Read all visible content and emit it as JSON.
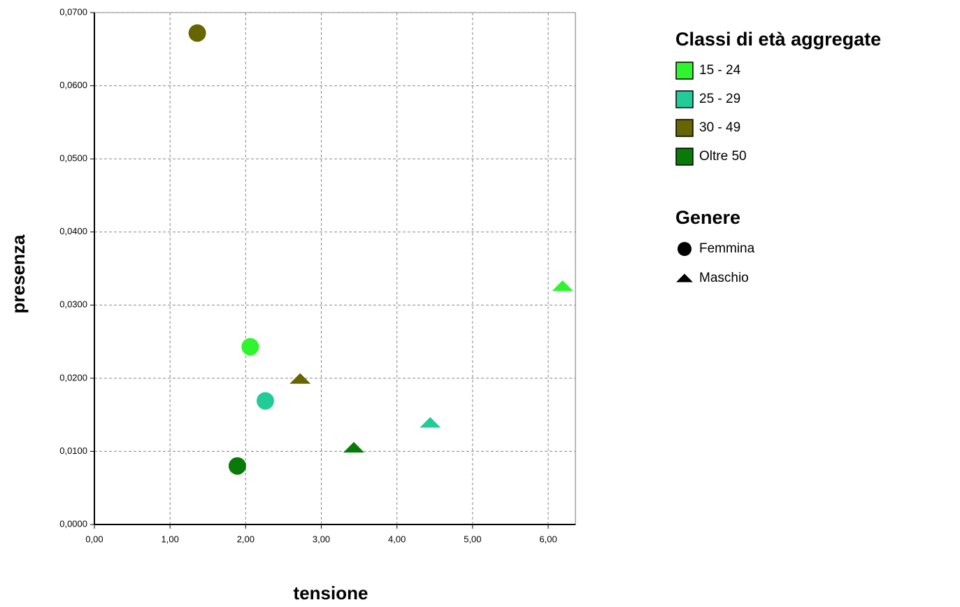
{
  "chart_data": {
    "type": "scatter",
    "x_label": "tensione",
    "y_label": "presenza",
    "xlim": [
      0,
      6.36
    ],
    "ylim": [
      0,
      0.07
    ],
    "xticks": [
      {
        "value": 0,
        "label": "0,00"
      },
      {
        "value": 1,
        "label": "1,00"
      },
      {
        "value": 2,
        "label": "2,00"
      },
      {
        "value": 3,
        "label": "3,00"
      },
      {
        "value": 4,
        "label": "4,00"
      },
      {
        "value": 5,
        "label": "5,00"
      },
      {
        "value": 6,
        "label": "6,00"
      }
    ],
    "yticks": [
      {
        "value": 0,
        "label": "0,0000"
      },
      {
        "value": 0.01,
        "label": "0,0100"
      },
      {
        "value": 0.02,
        "label": "0,0200"
      },
      {
        "value": 0.03,
        "label": "0,0300"
      },
      {
        "value": 0.04,
        "label": "0,0400"
      },
      {
        "value": 0.05,
        "label": "0,0500"
      },
      {
        "value": 0.06,
        "label": "0,0600"
      },
      {
        "value": 0.07,
        "label": "0,0700"
      }
    ],
    "grid": true,
    "color_legend_title": "Classi di età aggregate",
    "shape_legend_title": "Genere",
    "shapes": [
      {
        "name": "Femmina",
        "marker": "circle"
      },
      {
        "name": "Maschio",
        "marker": "triangle"
      }
    ],
    "series": [
      {
        "name": "15 - 24",
        "color": "#2ef52e",
        "x": [
          2.06,
          6.19
        ],
        "y": [
          0.0243,
          0.0326
        ]
      },
      {
        "name": "25 - 29",
        "color": "#22cc99",
        "x": [
          2.26,
          4.44
        ],
        "y": [
          0.0169,
          0.0139
        ]
      },
      {
        "name": "30 - 49",
        "color": "#666600",
        "x": [
          1.36,
          2.72
        ],
        "y": [
          0.0672,
          0.0199
        ]
      },
      {
        "name": "Oltre 50",
        "color": "#087a08",
        "x": [
          1.89,
          3.43
        ],
        "y": [
          0.008,
          0.0105
        ]
      }
    ]
  }
}
